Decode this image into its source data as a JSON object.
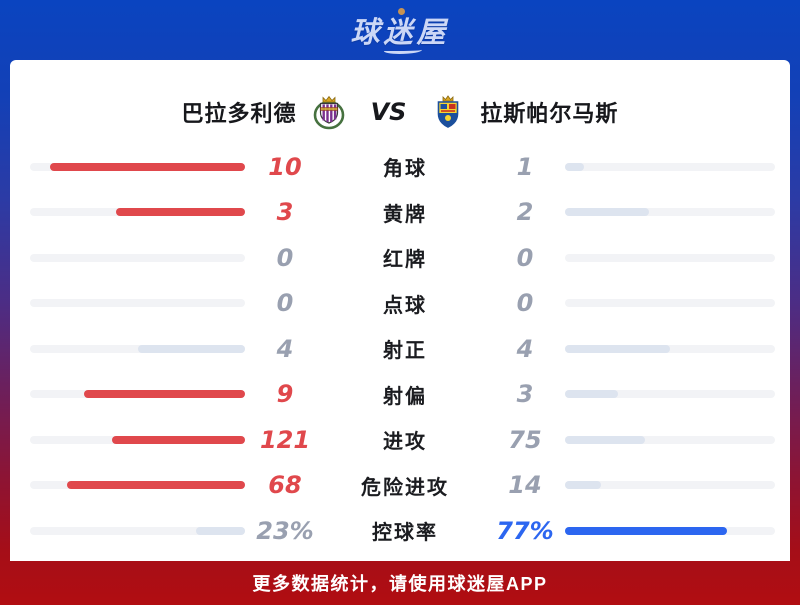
{
  "brand": {
    "logo_text": "球迷屋"
  },
  "header": {
    "home_team": "巴拉多利德",
    "away_team": "拉斯帕尔马斯",
    "vs_label": "VS"
  },
  "stats": {
    "rows": [
      {
        "label": "角球",
        "home": {
          "value": "10",
          "pct": 90.9,
          "state": "home-win"
        },
        "away": {
          "value": "1",
          "pct": 9.1,
          "state": "neutral"
        }
      },
      {
        "label": "黄牌",
        "home": {
          "value": "3",
          "pct": 60,
          "state": "home-win"
        },
        "away": {
          "value": "2",
          "pct": 40,
          "state": "neutral"
        }
      },
      {
        "label": "红牌",
        "home": {
          "value": "0",
          "pct": 0,
          "state": "neutral"
        },
        "away": {
          "value": "0",
          "pct": 0,
          "state": "neutral"
        }
      },
      {
        "label": "点球",
        "home": {
          "value": "0",
          "pct": 0,
          "state": "neutral"
        },
        "away": {
          "value": "0",
          "pct": 0,
          "state": "neutral"
        }
      },
      {
        "label": "射正",
        "home": {
          "value": "4",
          "pct": 50,
          "state": "neutral"
        },
        "away": {
          "value": "4",
          "pct": 50,
          "state": "neutral"
        }
      },
      {
        "label": "射偏",
        "home": {
          "value": "9",
          "pct": 75,
          "state": "home-win"
        },
        "away": {
          "value": "3",
          "pct": 25,
          "state": "neutral"
        }
      },
      {
        "label": "进攻",
        "home": {
          "value": "121",
          "pct": 61.7,
          "state": "home-win"
        },
        "away": {
          "value": "75",
          "pct": 38.3,
          "state": "neutral"
        }
      },
      {
        "label": "危险进攻",
        "home": {
          "value": "68",
          "pct": 82.9,
          "state": "home-win"
        },
        "away": {
          "value": "14",
          "pct": 17.1,
          "state": "neutral"
        }
      },
      {
        "label": "控球率",
        "home": {
          "value": "23%",
          "pct": 23,
          "state": "neutral"
        },
        "away": {
          "value": "77%",
          "pct": 77,
          "state": "away-win"
        }
      }
    ]
  },
  "footer": {
    "promo_text": "更多数据统计，请使用球迷屋APP"
  },
  "colors": {
    "home_highlight": "#e0484c",
    "away_highlight": "#2c66f0",
    "neutral_fill": "#dde4ef",
    "bar_track": "#f2f3f6",
    "muted_value": "#99a0b0",
    "bg_top": "#0a44c0",
    "bg_bottom": "#b10d11",
    "logo_color": "#ccd7f6"
  }
}
